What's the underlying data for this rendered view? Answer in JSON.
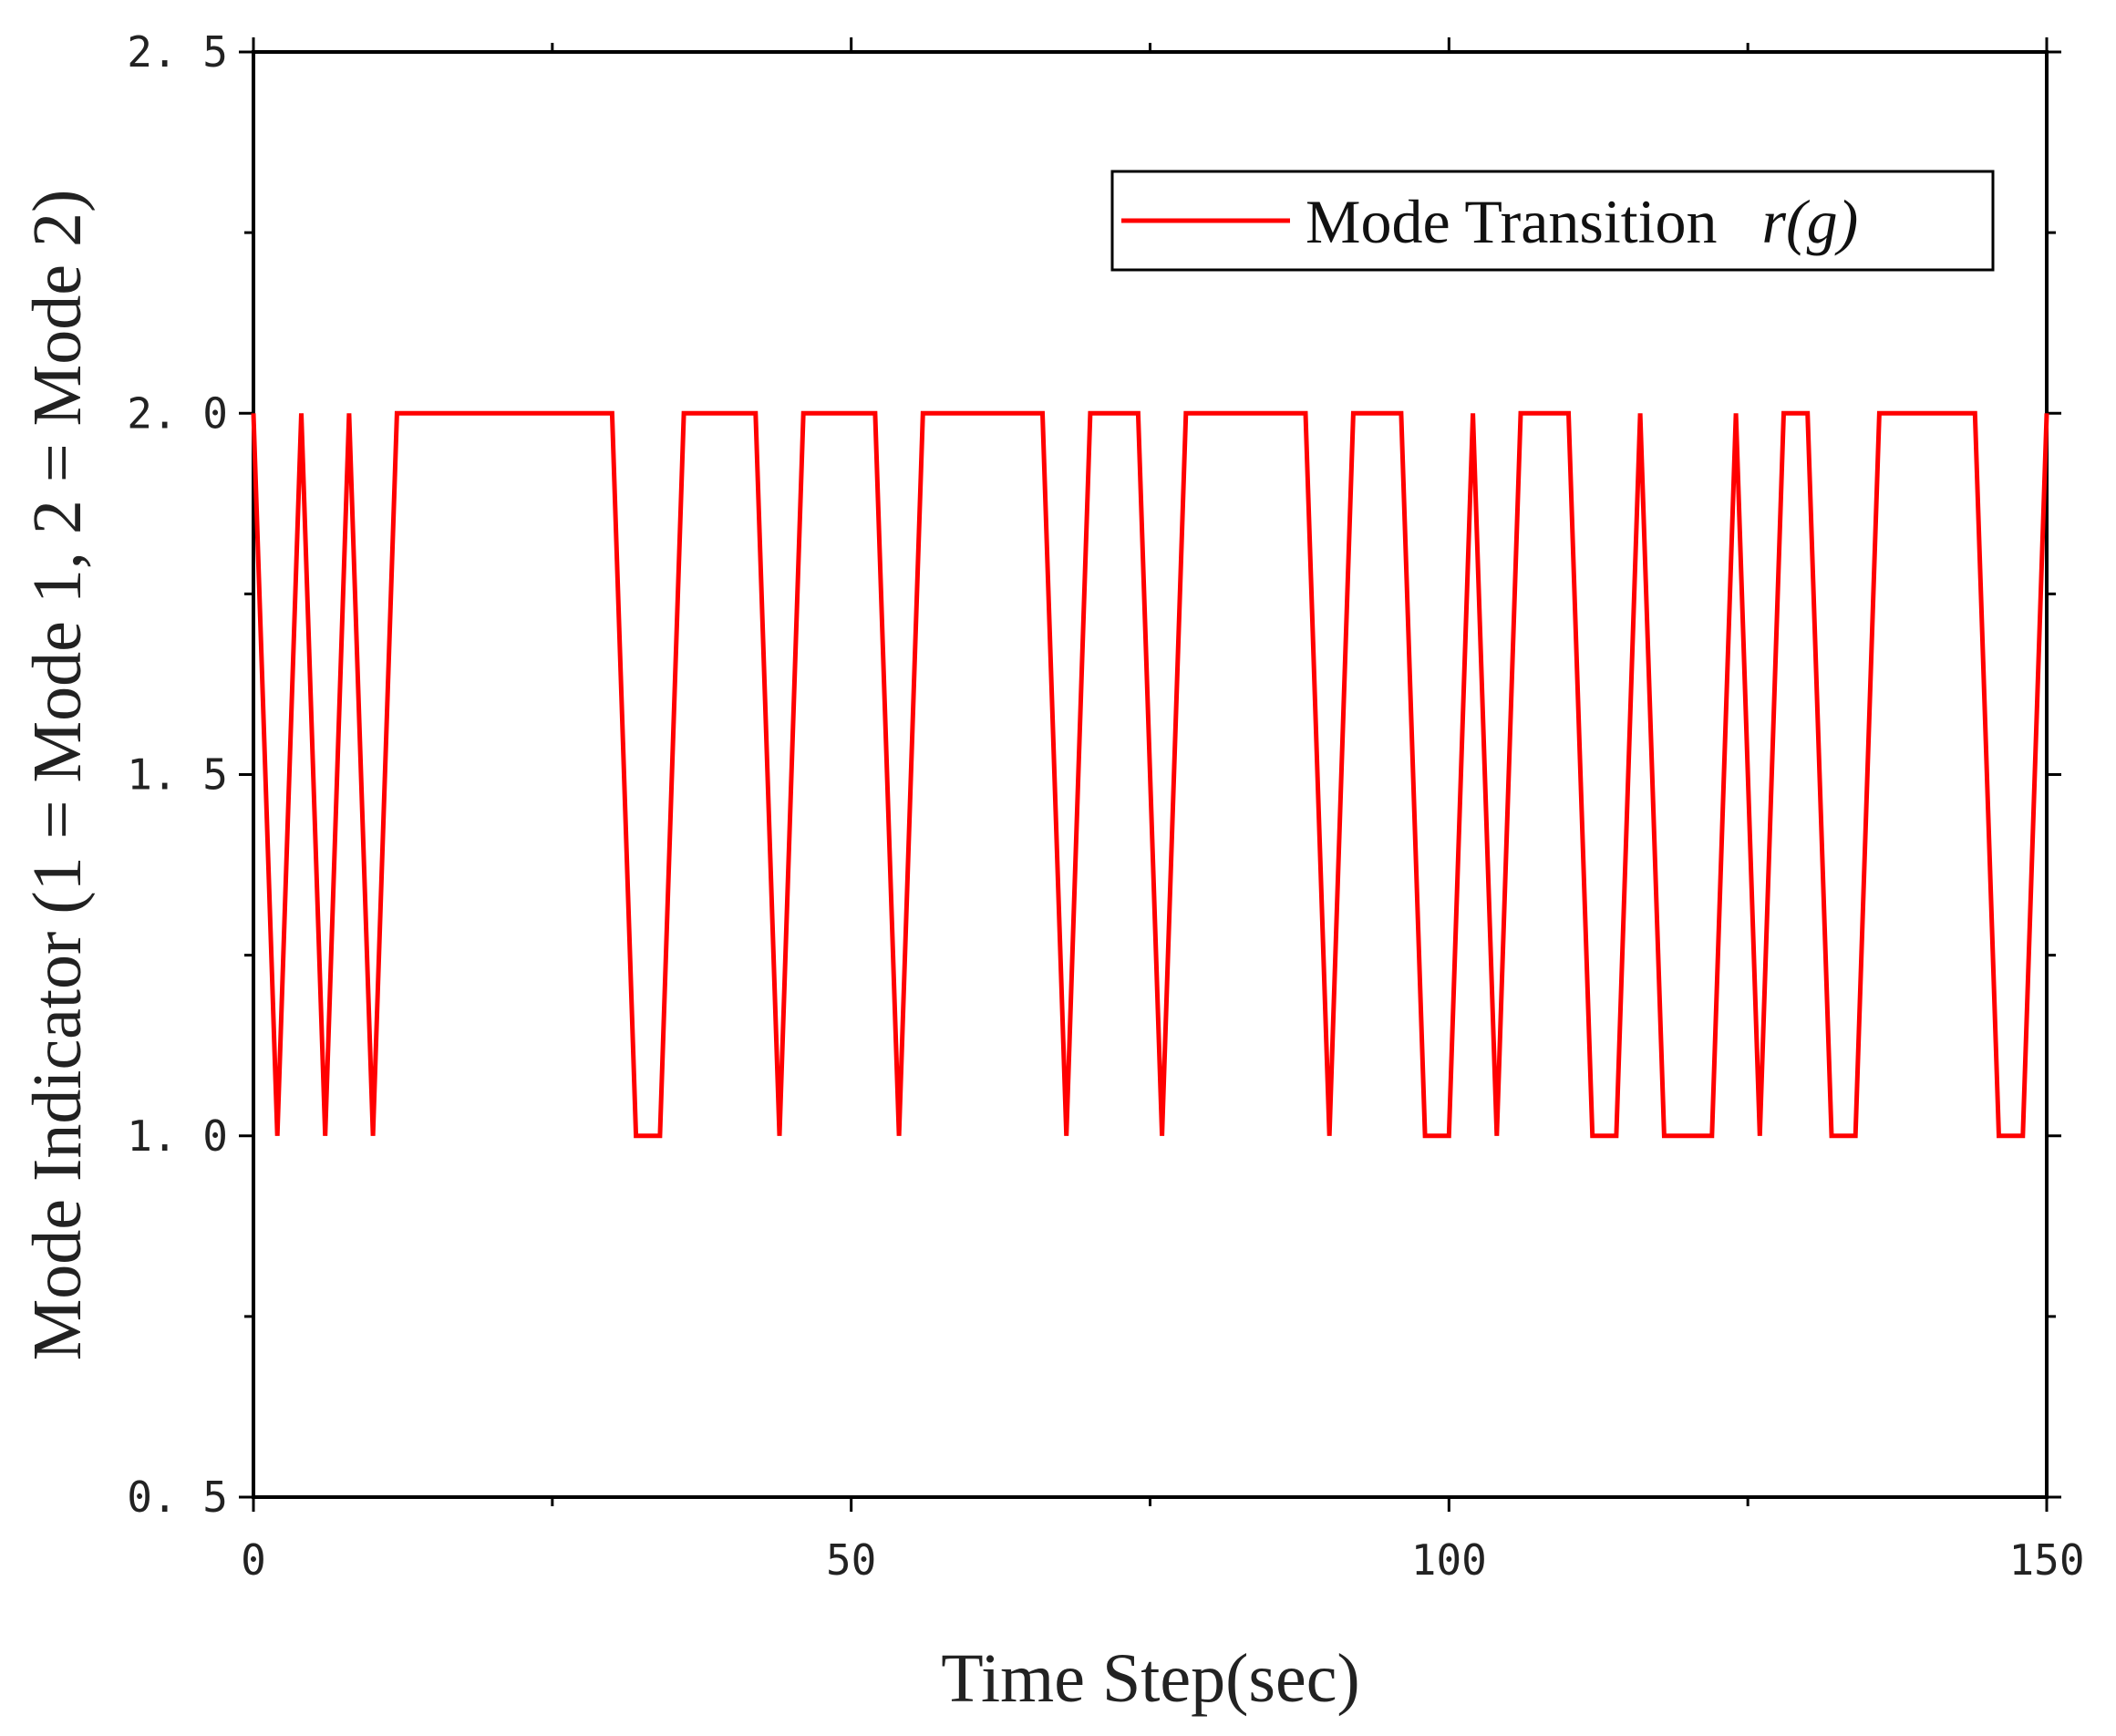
{
  "chart_data": {
    "type": "line",
    "xlabel": "Time Step(sec)",
    "ylabel": "Mode Indicator (1 = Mode 1, 2 = Mode 2)",
    "xlim": [
      0,
      150
    ],
    "ylim": [
      0.5,
      2.5
    ],
    "x_ticks": [
      0,
      50,
      100,
      150
    ],
    "x_tick_labels": [
      "0",
      "50",
      "100",
      "150"
    ],
    "y_ticks": [
      0.5,
      1.0,
      1.5,
      2.0,
      2.5
    ],
    "y_tick_labels": [
      "0. 5",
      "1. 0",
      "1. 5",
      "2. 0",
      "2. 5"
    ],
    "x_minor_ticks": [
      25,
      75,
      125
    ],
    "y_minor_ticks": [
      0.75,
      1.25,
      1.75,
      2.25
    ],
    "grid": false,
    "legend_position": "top-right",
    "legend": {
      "label_prefix": "Mode Transition",
      "label_math": "r(g)"
    },
    "series": [
      {
        "name": "Mode Transition r(g)",
        "color": "#ff0000",
        "x": [
          0,
          2,
          4,
          6,
          8,
          10,
          12,
          30,
          32,
          34,
          36,
          42,
          44,
          46,
          52,
          54,
          56,
          66,
          68,
          70,
          74,
          76,
          78,
          88,
          90,
          92,
          96,
          98,
          100,
          102,
          104,
          106,
          110,
          112,
          114,
          116,
          118,
          122,
          124,
          126,
          128,
          130,
          132,
          134,
          136,
          144,
          146,
          148,
          150
        ],
        "y": [
          2,
          1,
          2,
          1,
          2,
          1,
          2,
          2,
          1,
          1,
          2,
          2,
          1,
          2,
          2,
          1,
          2,
          2,
          1,
          2,
          2,
          1,
          2,
          2,
          1,
          2,
          2,
          1,
          1,
          2,
          1,
          2,
          2,
          1,
          1,
          2,
          1,
          1,
          2,
          1,
          2,
          2,
          1,
          1,
          2,
          2,
          1,
          1,
          2
        ]
      }
    ]
  }
}
